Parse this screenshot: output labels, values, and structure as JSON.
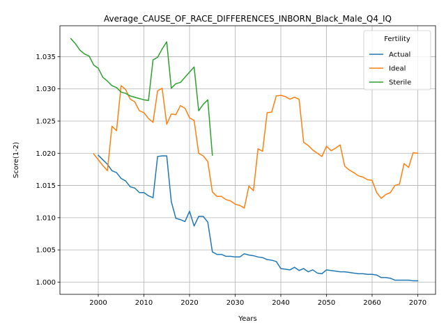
{
  "chart_data": {
    "type": "line",
    "title": "Average_CAUSE_OF_RACE_DIFFERENCES_INBORN_Black_Male_Q4_IQ",
    "xlabel": "Years",
    "ylabel": "Score(1-2)",
    "xlim": [
      1991.6,
      2073.9
    ],
    "ylim": [
      0.9981,
      1.0398
    ],
    "xticks": [
      2000,
      2010,
      2020,
      2030,
      2040,
      2050,
      2060,
      2070
    ],
    "yticks": [
      1.0,
      1.005,
      1.01,
      1.015,
      1.02,
      1.025,
      1.03,
      1.035
    ],
    "ytick_labels": [
      "1.000",
      "1.005",
      "1.010",
      "1.015",
      "1.020",
      "1.025",
      "1.030",
      "1.035"
    ],
    "grid": true,
    "legend": {
      "title": "Fertility",
      "placement": "top-right"
    },
    "series": [
      {
        "name": "Actual",
        "color": "#1f77b4",
        "x": [
          2000,
          2001,
          2002,
          2003,
          2004,
          2005,
          2006,
          2007,
          2008,
          2009,
          2010,
          2011,
          2012,
          2013,
          2014,
          2015,
          2016,
          2017,
          2018,
          2019,
          2020,
          2021,
          2022,
          2023,
          2024,
          2025,
          2026,
          2027,
          2028,
          2029,
          2030,
          2031,
          2032,
          2033,
          2034,
          2035,
          2036,
          2037,
          2038,
          2039,
          2040,
          2041,
          2042,
          2043,
          2044,
          2045,
          2046,
          2047,
          2048,
          2049,
          2050,
          2051,
          2052,
          2053,
          2054,
          2055,
          2056,
          2057,
          2058,
          2059,
          2060,
          2061,
          2062,
          2063,
          2064,
          2065,
          2066,
          2067,
          2068,
          2069,
          2070
        ],
        "values": [
          1.0197,
          1.019,
          1.0183,
          1.0173,
          1.017,
          1.0161,
          1.0157,
          1.0148,
          1.0146,
          1.0139,
          1.0139,
          1.0134,
          1.0131,
          1.0195,
          1.0196,
          1.0196,
          1.0125,
          1.0099,
          1.0097,
          1.0094,
          1.011,
          1.0087,
          1.0102,
          1.0102,
          1.0093,
          1.0047,
          1.0043,
          1.0043,
          1.004,
          1.004,
          1.0039,
          1.0039,
          1.0044,
          1.0042,
          1.0041,
          1.0039,
          1.0038,
          1.0035,
          1.0034,
          1.0032,
          1.0021,
          1.002,
          1.0019,
          1.0023,
          1.0018,
          1.0021,
          1.0016,
          1.0019,
          1.0014,
          1.0013,
          1.0019,
          1.0018,
          1.0017,
          1.0016,
          1.0016,
          1.0015,
          1.0014,
          1.0013,
          1.0013,
          1.0012,
          1.0012,
          1.0011,
          1.0007,
          1.0007,
          1.0006,
          1.0003,
          1.0003,
          1.0003,
          1.0003,
          1.0002,
          1.0002
        ]
      },
      {
        "name": "Ideal",
        "color": "#ff7f0e",
        "x": [
          1999,
          2000,
          2001,
          2002,
          2003,
          2004,
          2005,
          2006,
          2007,
          2008,
          2009,
          2010,
          2011,
          2012,
          2013,
          2014,
          2015,
          2016,
          2017,
          2018,
          2019,
          2020,
          2021,
          2022,
          2023,
          2024,
          2025,
          2026,
          2027,
          2028,
          2029,
          2030,
          2031,
          2032,
          2033,
          2034,
          2035,
          2036,
          2037,
          2038,
          2039,
          2040,
          2041,
          2042,
          2043,
          2044,
          2045,
          2046,
          2047,
          2048,
          2049,
          2050,
          2051,
          2052,
          2053,
          2054,
          2055,
          2056,
          2057,
          2058,
          2059,
          2060,
          2061,
          2062,
          2063,
          2064,
          2065,
          2066,
          2067,
          2068,
          2069,
          2070
        ],
        "values": [
          1.0199,
          1.019,
          1.0181,
          1.0173,
          1.0242,
          1.0235,
          1.0305,
          1.0299,
          1.0284,
          1.028,
          1.0266,
          1.0263,
          1.0254,
          1.0248,
          1.0297,
          1.0301,
          1.0245,
          1.0261,
          1.026,
          1.0274,
          1.027,
          1.0255,
          1.0251,
          1.02,
          1.0196,
          1.0187,
          1.014,
          1.0133,
          1.0133,
          1.0128,
          1.0126,
          1.0121,
          1.0119,
          1.0115,
          1.0149,
          1.0142,
          1.0207,
          1.0203,
          1.0263,
          1.0264,
          1.0289,
          1.029,
          1.0288,
          1.0284,
          1.0287,
          1.0284,
          1.0217,
          1.0212,
          1.0205,
          1.02,
          1.0195,
          1.0211,
          1.0204,
          1.0208,
          1.0213,
          1.018,
          1.0174,
          1.017,
          1.0165,
          1.0163,
          1.0159,
          1.0158,
          1.0139,
          1.013,
          1.0136,
          1.0139,
          1.015,
          1.0152,
          1.0184,
          1.0178,
          1.0201,
          1.02
        ]
      },
      {
        "name": "Sterile",
        "color": "#2ca02c",
        "x": [
          1994,
          1995,
          1996,
          1997,
          1998,
          1999,
          2000,
          2001,
          2002,
          2003,
          2004,
          2005,
          2006,
          2007,
          2008,
          2009,
          2010,
          2011,
          2012,
          2013,
          2014,
          2015,
          2016,
          2017,
          2018,
          2019,
          2020,
          2021,
          2022,
          2023,
          2024,
          2025
        ],
        "values": [
          1.0378,
          1.037,
          1.036,
          1.0354,
          1.0351,
          1.0337,
          1.0332,
          1.0318,
          1.0312,
          1.0305,
          1.0302,
          1.0295,
          1.0293,
          1.0289,
          1.0287,
          1.0285,
          1.0283,
          1.0282,
          1.0345,
          1.0349,
          1.0362,
          1.0373,
          1.0301,
          1.0308,
          1.031,
          1.0318,
          1.0326,
          1.0334,
          1.0266,
          1.0276,
          1.0283,
          1.0197
        ]
      }
    ]
  }
}
